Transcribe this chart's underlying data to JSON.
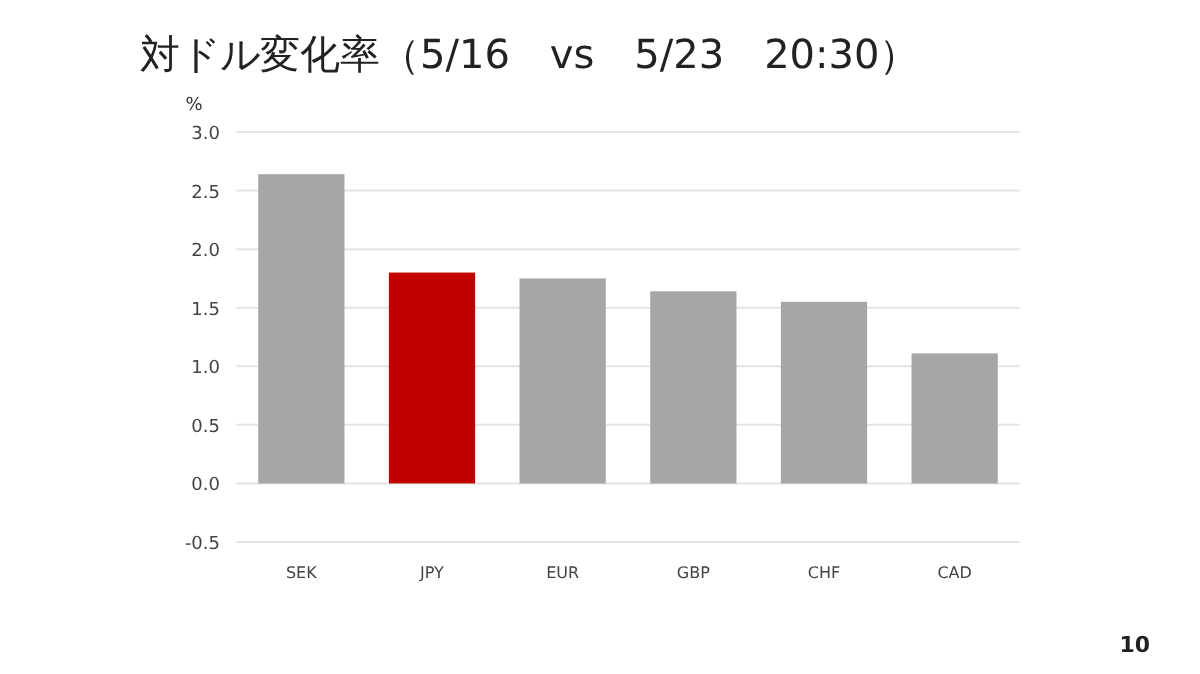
{
  "chart_data": {
    "type": "bar",
    "title": "対ドル変化率（5/16　vs　5/23　20:30）",
    "ylabel": "%",
    "categories": [
      "SEK",
      "JPY",
      "EUR",
      "GBP",
      "CHF",
      "CAD"
    ],
    "values": [
      2.64,
      1.8,
      1.75,
      1.64,
      1.55,
      1.11
    ],
    "colors": [
      "#a6a6a6",
      "#c00000",
      "#a6a6a6",
      "#a6a6a6",
      "#a6a6a6",
      "#a6a6a6"
    ],
    "ylim": [
      -0.5,
      3.0
    ],
    "yticks": [
      {
        "value": -0.5,
        "label": "-0.5"
      },
      {
        "value": 0,
        "label": "0.0"
      },
      {
        "value": 0.5,
        "label": "0.5"
      },
      {
        "value": 1,
        "label": "1.0"
      },
      {
        "value": 1.5,
        "label": "1.5"
      },
      {
        "value": 2,
        "label": "2.0"
      },
      {
        "value": 2.5,
        "label": "2.5"
      },
      {
        "value": 3,
        "label": "3.0"
      }
    ],
    "grid": "y",
    "annotations": [
      "10"
    ]
  }
}
